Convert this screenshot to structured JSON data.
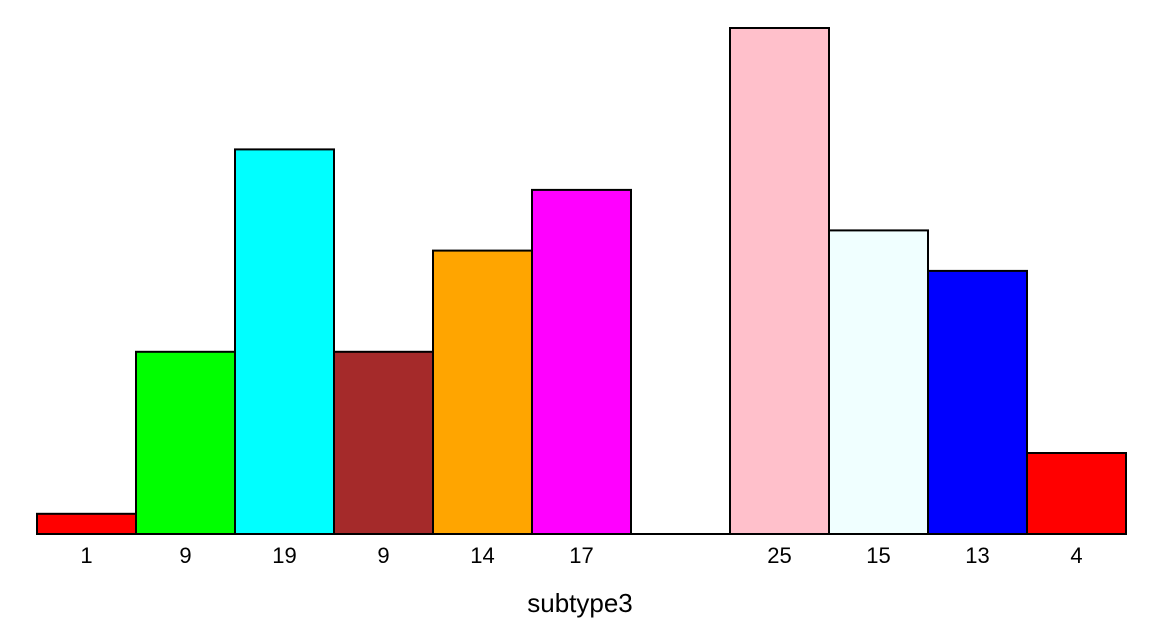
{
  "chart_data": {
    "type": "bar",
    "title": "",
    "xlabel": "subtype3",
    "ylabel": "",
    "ylim": [
      0,
      25
    ],
    "grid": false,
    "bars": [
      {
        "label": "1",
        "value": 1,
        "color": "#FF0000"
      },
      {
        "label": "9",
        "value": 9,
        "color": "#00FF00"
      },
      {
        "label": "19",
        "value": 19,
        "color": "#00FFFF"
      },
      {
        "label": "9",
        "value": 9,
        "color": "#A52A2A"
      },
      {
        "label": "14",
        "value": 14,
        "color": "#FFA500"
      },
      {
        "label": "17",
        "value": 17,
        "color": "#FF00FF"
      },
      {
        "label": "",
        "value": 0,
        "color": "#FFFFFF"
      },
      {
        "label": "25",
        "value": 25,
        "color": "#FFC0CB"
      },
      {
        "label": "15",
        "value": 15,
        "color": "#F0FFFF"
      },
      {
        "label": "13",
        "value": 13,
        "color": "#0000FF"
      },
      {
        "label": "4",
        "value": 4,
        "color": "#FF0000"
      }
    ]
  }
}
